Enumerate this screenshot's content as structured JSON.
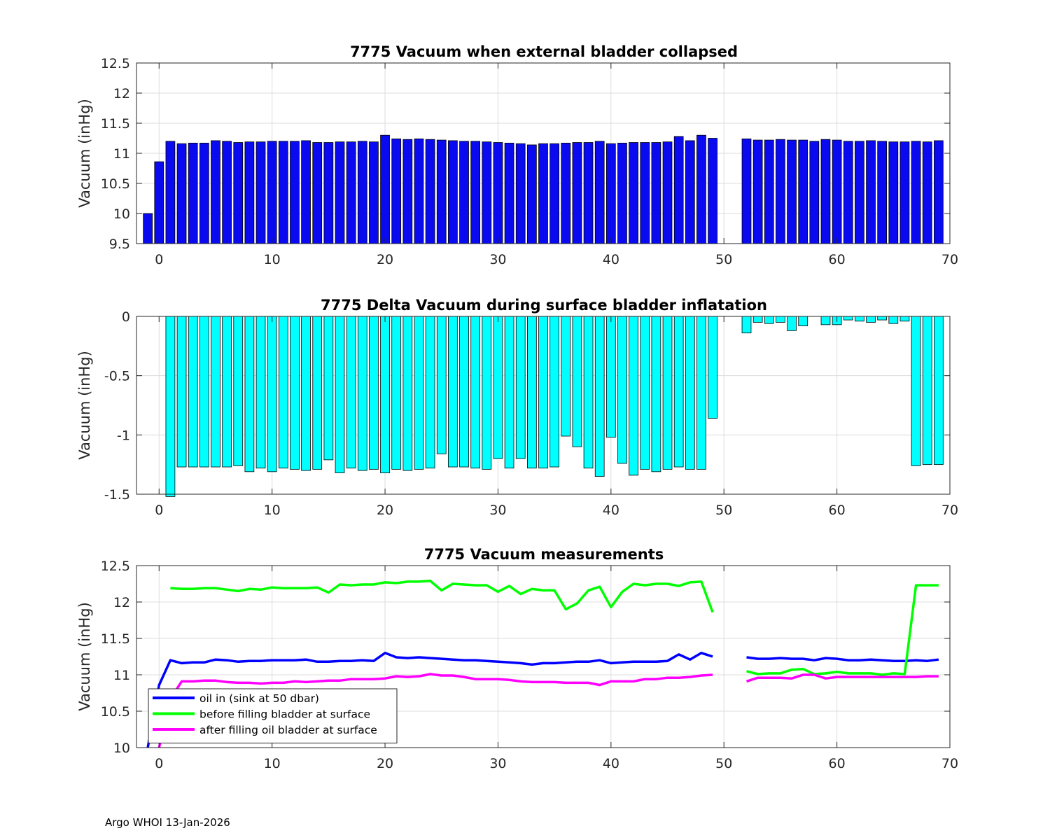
{
  "footer": "Argo WHOI 13-Jan-2026",
  "chart_data": [
    {
      "type": "bar",
      "title": "7775 Vacuum when external bladder collapsed",
      "ylabel": "Vacuum (inHg)",
      "xlabel": "",
      "xlim": [
        -2,
        70
      ],
      "ylim": [
        9.5,
        12.5
      ],
      "grid": true,
      "bar_color": "#0a0af0",
      "xticks": [
        0,
        10,
        20,
        30,
        40,
        50,
        60,
        70
      ],
      "yticks": [
        9.5,
        10,
        10.5,
        11,
        11.5,
        12,
        12.5
      ],
      "x": [
        -1,
        0,
        1,
        2,
        3,
        4,
        5,
        6,
        7,
        8,
        9,
        10,
        11,
        12,
        13,
        14,
        15,
        16,
        17,
        18,
        19,
        20,
        21,
        22,
        23,
        24,
        25,
        26,
        27,
        28,
        29,
        30,
        31,
        32,
        33,
        34,
        35,
        36,
        37,
        38,
        39,
        40,
        41,
        42,
        43,
        44,
        45,
        46,
        47,
        48,
        49,
        52,
        53,
        54,
        55,
        56,
        57,
        58,
        59,
        60,
        61,
        62,
        63,
        64,
        65,
        66,
        67,
        68,
        69
      ],
      "values": [
        10.0,
        10.86,
        11.2,
        11.16,
        11.17,
        11.17,
        11.21,
        11.2,
        11.18,
        11.19,
        11.19,
        11.2,
        11.2,
        11.2,
        11.21,
        11.18,
        11.18,
        11.19,
        11.19,
        11.2,
        11.19,
        11.3,
        11.24,
        11.23,
        11.24,
        11.23,
        11.22,
        11.21,
        11.2,
        11.2,
        11.19,
        11.18,
        11.17,
        11.16,
        11.14,
        11.16,
        11.16,
        11.17,
        11.18,
        11.18,
        11.2,
        11.16,
        11.17,
        11.18,
        11.18,
        11.18,
        11.19,
        11.28,
        11.21,
        11.3,
        11.25,
        11.24,
        11.22,
        11.22,
        11.23,
        11.22,
        11.22,
        11.2,
        11.23,
        11.22,
        11.2,
        11.2,
        11.21,
        11.2,
        11.19,
        11.19,
        11.2,
        11.19,
        11.21
      ]
    },
    {
      "type": "bar",
      "title": "7775 Delta Vacuum during surface bladder inflatation",
      "ylabel": "Vacuum (inHg)",
      "xlabel": "",
      "xlim": [
        -2,
        70
      ],
      "ylim": [
        -1.5,
        0
      ],
      "grid": true,
      "bar_color": "#00ffff",
      "xticks": [
        0,
        10,
        20,
        30,
        40,
        50,
        60,
        70
      ],
      "yticks": [
        -1.5,
        -1,
        -0.5,
        0
      ],
      "x": [
        1,
        2,
        3,
        4,
        5,
        6,
        7,
        8,
        9,
        10,
        11,
        12,
        13,
        14,
        15,
        16,
        17,
        18,
        19,
        20,
        21,
        22,
        23,
        24,
        25,
        26,
        27,
        28,
        29,
        30,
        31,
        32,
        33,
        34,
        35,
        36,
        37,
        38,
        39,
        40,
        41,
        42,
        43,
        44,
        45,
        46,
        47,
        48,
        49,
        52,
        53,
        54,
        55,
        56,
        57,
        59,
        60,
        61,
        62,
        63,
        64,
        65,
        66,
        67,
        68,
        69
      ],
      "values": [
        -1.52,
        -1.27,
        -1.27,
        -1.27,
        -1.27,
        -1.27,
        -1.26,
        -1.31,
        -1.28,
        -1.31,
        -1.28,
        -1.29,
        -1.3,
        -1.29,
        -1.21,
        -1.32,
        -1.28,
        -1.3,
        -1.29,
        -1.32,
        -1.29,
        -1.3,
        -1.29,
        -1.28,
        -1.16,
        -1.27,
        -1.27,
        -1.28,
        -1.29,
        -1.2,
        -1.28,
        -1.2,
        -1.28,
        -1.28,
        -1.27,
        -1.01,
        -1.1,
        -1.28,
        -1.35,
        -1.02,
        -1.24,
        -1.34,
        -1.29,
        -1.31,
        -1.29,
        -1.27,
        -1.29,
        -1.29,
        -0.86,
        -0.14,
        -0.05,
        -0.06,
        -0.05,
        -0.12,
        -0.08,
        -0.07,
        -0.07,
        -0.03,
        -0.04,
        -0.05,
        -0.03,
        -0.06,
        -0.04,
        -1.26,
        -1.25,
        -1.25
      ]
    },
    {
      "type": "line",
      "title": "7775 Vacuum measurements",
      "ylabel": "Vacuum (inHg)",
      "xlabel": "",
      "xlim": [
        -2,
        70
      ],
      "ylim": [
        10,
        12.5
      ],
      "grid": true,
      "xticks": [
        0,
        10,
        20,
        30,
        40,
        50,
        60,
        70
      ],
      "yticks": [
        10,
        10.5,
        11,
        11.5,
        12,
        12.5
      ],
      "legend_position": "bottom-left",
      "series": [
        {
          "name": "oil in (sink at 50 dbar)",
          "color": "#0000ff",
          "segments": [
            {
              "x": [
                -1,
                0,
                1,
                2,
                3,
                4,
                5,
                6,
                7,
                8,
                9,
                10,
                11,
                12,
                13,
                14,
                15,
                16,
                17,
                18,
                19,
                20,
                21,
                22,
                23,
                24,
                25,
                26,
                27,
                28,
                29,
                30,
                31,
                32,
                33,
                34,
                35,
                36,
                37,
                38,
                39,
                40,
                41,
                42,
                43,
                44,
                45,
                46,
                47,
                48,
                49
              ],
              "y": [
                10.0,
                10.86,
                11.2,
                11.16,
                11.17,
                11.17,
                11.21,
                11.2,
                11.18,
                11.19,
                11.19,
                11.2,
                11.2,
                11.2,
                11.21,
                11.18,
                11.18,
                11.19,
                11.19,
                11.2,
                11.19,
                11.3,
                11.24,
                11.23,
                11.24,
                11.23,
                11.22,
                11.21,
                11.2,
                11.2,
                11.19,
                11.18,
                11.17,
                11.16,
                11.14,
                11.16,
                11.16,
                11.17,
                11.18,
                11.18,
                11.2,
                11.16,
                11.17,
                11.18,
                11.18,
                11.18,
                11.19,
                11.28,
                11.21,
                11.3,
                11.25
              ]
            },
            {
              "x": [
                52,
                53,
                54,
                55,
                56,
                57,
                58,
                59,
                60,
                61,
                62,
                63,
                64,
                65,
                66,
                67,
                68,
                69
              ],
              "y": [
                11.24,
                11.22,
                11.22,
                11.23,
                11.22,
                11.22,
                11.2,
                11.23,
                11.22,
                11.2,
                11.2,
                11.21,
                11.2,
                11.19,
                11.19,
                11.2,
                11.19,
                11.21
              ]
            }
          ]
        },
        {
          "name": "before filling bladder at surface",
          "color": "#00ff00",
          "segments": [
            {
              "x": [
                1,
                2,
                3,
                4,
                5,
                6,
                7,
                8,
                9,
                10,
                11,
                12,
                13,
                14,
                15,
                16,
                17,
                18,
                19,
                20,
                21,
                22,
                23,
                24,
                25,
                26,
                27,
                28,
                29,
                30,
                31,
                32,
                33,
                34,
                35,
                36,
                37,
                38,
                39,
                40,
                41,
                42,
                43,
                44,
                45,
                46,
                47,
                48,
                49
              ],
              "y": [
                12.19,
                12.18,
                12.18,
                12.19,
                12.19,
                12.17,
                12.15,
                12.18,
                12.17,
                12.2,
                12.19,
                12.19,
                12.19,
                12.2,
                12.13,
                12.24,
                12.23,
                12.24,
                12.24,
                12.27,
                12.26,
                12.28,
                12.28,
                12.29,
                12.16,
                12.25,
                12.24,
                12.23,
                12.23,
                12.14,
                12.22,
                12.11,
                12.18,
                12.16,
                12.16,
                11.9,
                11.98,
                12.16,
                12.21,
                11.93,
                12.14,
                12.25,
                12.23,
                12.25,
                12.25,
                12.22,
                12.27,
                12.28,
                11.86
              ]
            },
            {
              "x": [
                52,
                53,
                54,
                55,
                56,
                57,
                58,
                59,
                60,
                61,
                62,
                63,
                64,
                65,
                66,
                67,
                68,
                69
              ],
              "y": [
                11.05,
                11.01,
                11.02,
                11.02,
                11.07,
                11.08,
                11.01,
                11.02,
                11.04,
                11.02,
                11.02,
                11.02,
                11.0,
                11.02,
                11.01,
                12.23,
                12.23,
                12.23
              ]
            }
          ]
        },
        {
          "name": "after filling oil bladder at surface",
          "color": "#ff00ff",
          "segments": [
            {
              "x": [
                0,
                1,
                2,
                3,
                4,
                5,
                6,
                7,
                8,
                9,
                10,
                11,
                12,
                13,
                14,
                15,
                16,
                17,
                18,
                19,
                20,
                21,
                22,
                23,
                24,
                25,
                26,
                27,
                28,
                29,
                30,
                31,
                32,
                33,
                34,
                35,
                36,
                37,
                38,
                39,
                40,
                41,
                42,
                43,
                44,
                45,
                46,
                47,
                48,
                49
              ],
              "y": [
                10.0,
                10.67,
                10.91,
                10.91,
                10.92,
                10.92,
                10.9,
                10.89,
                10.89,
                10.88,
                10.89,
                10.89,
                10.91,
                10.9,
                10.91,
                10.92,
                10.92,
                10.94,
                10.94,
                10.94,
                10.95,
                10.98,
                10.97,
                10.98,
                11.01,
                10.99,
                10.99,
                10.97,
                10.94,
                10.94,
                10.94,
                10.93,
                10.91,
                10.9,
                10.9,
                10.9,
                10.89,
                10.89,
                10.89,
                10.86,
                10.91,
                10.91,
                10.91,
                10.94,
                10.94,
                10.96,
                10.96,
                10.97,
                10.99,
                11.0
              ]
            },
            {
              "x": [
                52,
                53,
                54,
                55,
                56,
                57,
                58,
                59,
                60,
                61,
                62,
                63,
                64,
                65,
                66,
                67,
                68,
                69
              ],
              "y": [
                10.91,
                10.96,
                10.96,
                10.96,
                10.95,
                11.0,
                11.0,
                10.95,
                10.97,
                10.97,
                10.97,
                10.97,
                10.97,
                10.97,
                10.97,
                10.97,
                10.98,
                10.98
              ]
            }
          ]
        }
      ]
    }
  ]
}
